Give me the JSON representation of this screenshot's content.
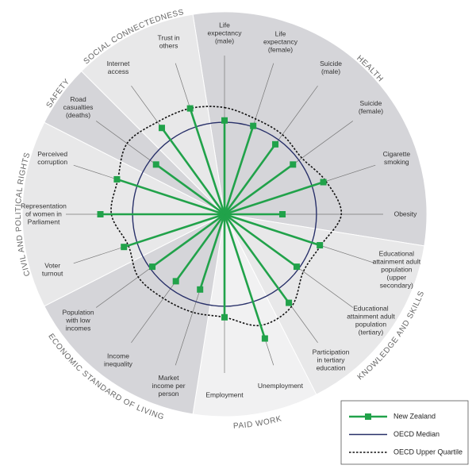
{
  "chart_data": {
    "type": "radar",
    "rlim": [
      0,
      220
    ],
    "legend": "bottom-right",
    "domains": [
      {
        "name": "HEALTH",
        "color": "#d5d5d9",
        "categories": [
          [
            "Life",
            "expectancy",
            "(male)"
          ],
          [
            "Life",
            "expectancy",
            "(female)"
          ],
          [
            "Suicide",
            "(male)"
          ],
          [
            "Suicide",
            "(female)"
          ],
          [
            "Cigarette",
            "smoking"
          ],
          [
            "Obesity"
          ]
        ]
      },
      {
        "name": "KNOWLEDGE AND SKILLS",
        "color": "#e8e8e9",
        "categories": [
          [
            "Educational",
            "attainment adult",
            "population",
            "(upper",
            "secondary)"
          ],
          [
            "Educational",
            "attainment adult",
            "population",
            "(tertiary)"
          ],
          [
            "Participation",
            "in tertiary",
            "education"
          ]
        ]
      },
      {
        "name": "PAID WORK",
        "color": "#f1f1f2",
        "categories": [
          [
            "Unemployment"
          ],
          [
            "Employment"
          ]
        ]
      },
      {
        "name": "ECONOMIC STANDARD OF LIVING",
        "color": "#d5d5d9",
        "categories": [
          [
            "Market",
            "income per",
            "person"
          ],
          [
            "Income",
            "inequality"
          ],
          [
            "Population",
            "with low",
            "incomes"
          ]
        ]
      },
      {
        "name": "CIVIL AND POLITICAL RIGHTS",
        "color": "#e8e8e9",
        "categories": [
          [
            "Voter",
            "turnout"
          ],
          [
            "Representation",
            "of women in",
            "Parliament"
          ],
          [
            "Perceived",
            "corruption"
          ]
        ]
      },
      {
        "name": "SAFETY",
        "color": "#d5d5d9",
        "categories": [
          [
            "Road",
            "casualties",
            "(deaths)"
          ]
        ]
      },
      {
        "name": "SOCIAL CONNECTEDNESS",
        "color": "#e8e8e9",
        "categories": [
          [
            "Internet",
            "access"
          ],
          [
            "Trust in",
            "others"
          ]
        ]
      }
    ],
    "series": [
      {
        "name": "New Zealand",
        "color": "#21a24a",
        "style": "spokes",
        "values": [
          102,
          101,
          94,
          92,
          113,
          63,
          109,
          97,
          119,
          142,
          112,
          86,
          90,
          97,
          115,
          135,
          123,
          92,
          116,
          121
        ]
      },
      {
        "name": "OECD Median",
        "color": "#283069",
        "style": "solid",
        "values": [
          100,
          100,
          100,
          100,
          100,
          100,
          100,
          100,
          100,
          100,
          100,
          100,
          100,
          100,
          100,
          100,
          100,
          100,
          100,
          100
        ]
      },
      {
        "name": "OECD Upper Quartile",
        "color": "#111111",
        "style": "dotted",
        "values": [
          116,
          109,
          107,
          104,
          116,
          127,
          110,
          106,
          124,
          127,
          112,
          112,
          113,
          116,
          110,
          123,
          122,
          131,
          124,
          121
        ]
      }
    ]
  }
}
